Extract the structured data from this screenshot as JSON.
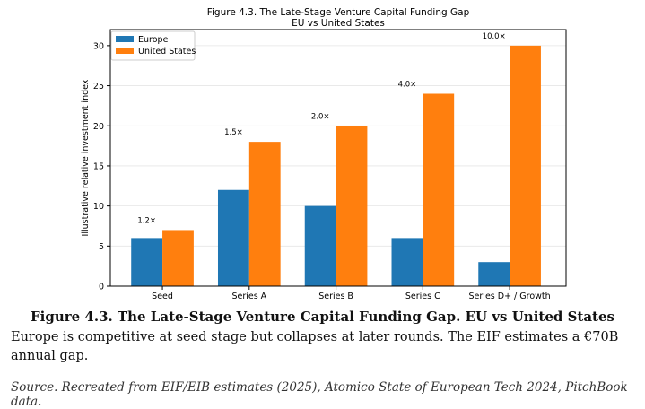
{
  "colors": {
    "europe": "#1f77b4",
    "us": "#ff7f0e",
    "grid": "#e6e6e6",
    "axis": "#000000"
  },
  "chart_data": {
    "type": "bar",
    "title": "Figure 4.3. The Late-Stage Venture Capital Funding Gap",
    "subtitle": "EU vs United States",
    "xlabel": "",
    "ylabel": "Illustrative relative investment index",
    "ylim": [
      0,
      32
    ],
    "yticks": [
      0,
      5,
      10,
      15,
      20,
      25,
      30
    ],
    "grid": "horizontal",
    "legend": "top-left",
    "categories": [
      "Seed",
      "Series A",
      "Series B",
      "Series C",
      "Series D+ / Growth"
    ],
    "series": [
      {
        "name": "Europe",
        "values": [
          6,
          12,
          10,
          6,
          3
        ]
      },
      {
        "name": "United States",
        "values": [
          7,
          18,
          20,
          24,
          30
        ]
      }
    ],
    "annotations": [
      "1.2×",
      "1.5×",
      "2.0×",
      "4.0×",
      "10.0×"
    ]
  },
  "caption": {
    "title": "Figure 4.3. The Late-Stage Venture Capital Funding Gap. EU vs United States",
    "text": "Europe is competitive at seed stage but collapses at later rounds. The EIF estimates a €70B annual gap.",
    "source": "Source. Recreated from EIF/EIB estimates (2025), Atomico State of European Tech 2024, PitchBook data."
  }
}
